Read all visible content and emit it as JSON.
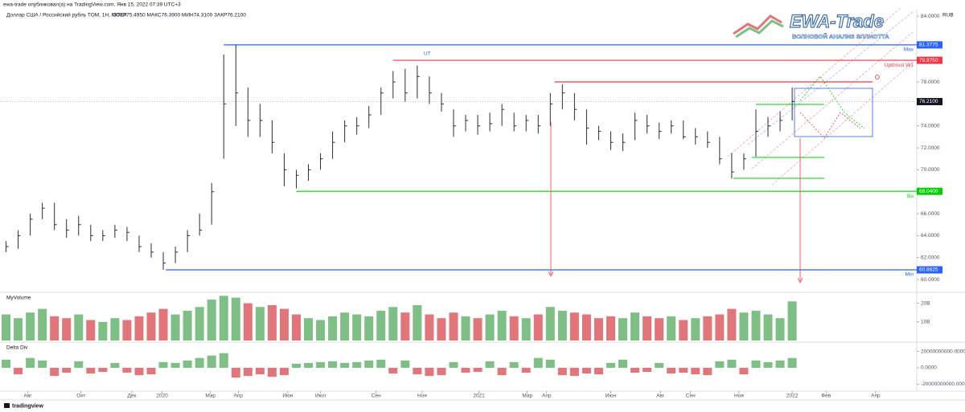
{
  "header": {
    "publisher": "ewa-trade опубликовал(а) на TradingView.com, Янв 15, 2022 07:39 UTC+3",
    "symbol": "Доллар США / Российский рубль TOM, 1Н, MOEX",
    "ohlc": "ОТКР75.4950  МАКС76.3900  МИН74.3100  ЗАКР76.2100"
  },
  "logo": {
    "title": "EWA-Trade",
    "subtitle": "ВОЛНОВОЙ АНАЛИЗ ЭЛЛИОТТА"
  },
  "footer": "tradingview",
  "chart_data": [
    {
      "type": "ohlc",
      "unit": "RUB",
      "color": "#2a2e39",
      "high": [
        63.5,
        64.5,
        66,
        67,
        67,
        65.5,
        65.8,
        65,
        64.5,
        65,
        64.8,
        64,
        63.3,
        62.5,
        63,
        64.5,
        66,
        68.8,
        80.5,
        81.3775,
        77.5,
        76,
        74.5,
        71.5,
        70,
        70.5,
        71.5,
        73.5,
        74.5,
        74.8,
        75.8,
        77.5,
        79,
        79.2,
        79.5,
        78.5,
        77,
        75.5,
        75,
        75,
        75.2,
        76,
        75.2,
        75,
        75,
        77,
        77.8,
        77,
        75.5,
        74,
        73.5,
        73.3,
        75.2,
        75,
        74.3,
        74.5,
        74.5,
        73.8,
        73.5,
        73,
        71.5,
        71.5,
        75.5,
        74.8,
        75.3,
        77.5
      ],
      "low": [
        62.5,
        62.8,
        64,
        65.5,
        64.5,
        63.8,
        64,
        63.5,
        63.5,
        63.8,
        63.5,
        62.5,
        62,
        60.8825,
        61.5,
        62.5,
        64,
        65,
        71,
        74,
        73,
        73,
        71.5,
        68.5,
        68.3,
        69,
        70,
        71,
        72.5,
        73.2,
        73.8,
        75,
        76.5,
        76.2,
        76.5,
        76,
        75.3,
        73,
        73.5,
        73.2,
        73.5,
        74,
        73.5,
        73.5,
        73.3,
        74,
        75.5,
        74.5,
        72.3,
        72.7,
        71.8,
        71.7,
        72.7,
        73.3,
        72.8,
        73.3,
        72.8,
        72.3,
        72,
        70.5,
        69.2,
        70,
        71.2,
        73,
        73.5,
        74.5
      ],
      "close": [
        63,
        64,
        65.5,
        66.5,
        65,
        64.5,
        65,
        64,
        64,
        64.5,
        64.3,
        63,
        62.5,
        61.5,
        62.5,
        64,
        64.5,
        68,
        76,
        77,
        74.5,
        74.5,
        72.5,
        70,
        69.5,
        70,
        71,
        72.5,
        74,
        74,
        75,
        77,
        78,
        77,
        78.5,
        77,
        76,
        74,
        74.5,
        74,
        74.2,
        75.5,
        74,
        74.5,
        74,
        76,
        77,
        75.5,
        73.8,
        73.5,
        72.5,
        72.5,
        74.5,
        74,
        73.5,
        74,
        73,
        73,
        72.5,
        71,
        69.8,
        71,
        73.5,
        74,
        74.5,
        76.21
      ],
      "xlim": [
        -0.5,
        75.3
      ],
      "xticks": [
        {
          "value": 1.8,
          "label": "Авг"
        },
        {
          "value": 6.2,
          "label": "Окт"
        },
        {
          "value": 10.4,
          "label": "Дек"
        },
        {
          "value": 12.9,
          "label": "2020"
        },
        {
          "value": 16.9,
          "label": "Мар"
        },
        {
          "value": 19.2,
          "label": "Апр"
        },
        {
          "value": 23.3,
          "label": "Июн"
        },
        {
          "value": 26,
          "label": "Июл"
        },
        {
          "value": 30.6,
          "label": "Сен"
        },
        {
          "value": 34.4,
          "label": "Ноя"
        },
        {
          "value": 39.1,
          "label": "2021"
        },
        {
          "value": 43.1,
          "label": "Мар"
        },
        {
          "value": 44.7,
          "label": "Апр"
        },
        {
          "value": 50,
          "label": "Июн"
        },
        {
          "value": 54.1,
          "label": "Авг"
        },
        {
          "value": 56.6,
          "label": "Сен"
        },
        {
          "value": 60.6,
          "label": "Ноя"
        },
        {
          "value": 65,
          "label": "2022"
        },
        {
          "value": 67.8,
          "label": "Фев"
        },
        {
          "value": 71.9,
          "label": "Апр"
        }
      ],
      "ylim": [
        58.98,
        84.59
      ],
      "yticks": [
        {
          "value": 84,
          "label": "84.0000"
        },
        {
          "value": 78,
          "label": "78.0000"
        },
        {
          "value": 74,
          "label": "74.0000"
        },
        {
          "value": 72,
          "label": "72.0000"
        },
        {
          "value": 70,
          "label": "70.0000"
        },
        {
          "value": 66,
          "label": "66.0000"
        },
        {
          "value": 64,
          "label": "64.0000"
        },
        {
          "value": 62,
          "label": "62.0000"
        },
        {
          "value": 60,
          "label": "60.0000"
        }
      ],
      "levels": [
        {
          "name": "Max",
          "value": 81.3775,
          "label": "81.3775",
          "color": "#2962ff",
          "from": 18
        },
        {
          "name": "Upthrust W1",
          "value": 79.975,
          "label": "79.9750",
          "color": "#f23645",
          "from": 32
        },
        {
          "name": "Bu",
          "value": 68.04,
          "label": "68.0400",
          "color": "#00d000",
          "from": 24
        },
        {
          "name": "Min",
          "value": 60.8825,
          "label": "60.8825",
          "color": "#2962ff",
          "from": 13.2
        }
      ],
      "last": {
        "value": 76.21,
        "label": "76.2100"
      },
      "annotations": [
        "UT"
      ]
    },
    {
      "type": "bar",
      "title": "MyVolume",
      "up_color": "#7dbf84",
      "down_color": "#e2757a",
      "values": [
        14,
        12,
        15,
        17,
        13,
        12,
        14,
        11,
        10,
        12,
        11,
        13,
        15,
        17,
        14,
        16,
        18,
        22,
        24,
        23,
        20,
        18,
        19,
        17,
        14,
        12,
        11,
        13,
        15,
        14,
        13,
        16,
        18,
        15,
        19,
        14,
        12,
        15,
        13,
        12,
        14,
        16,
        13,
        12,
        14,
        18,
        16,
        15,
        14,
        12,
        13,
        12,
        15,
        13,
        12,
        13,
        11,
        12,
        13,
        14,
        17,
        15,
        16,
        14,
        12,
        21
      ],
      "ylim": [
        0,
        25
      ],
      "yticks": [
        {
          "value": 20,
          "label": "20B"
        },
        {
          "value": 10,
          "label": "10B"
        }
      ]
    },
    {
      "type": "bar",
      "title": "Delta Div",
      "up_color": "#7dbf84",
      "down_color": "#e2757a",
      "values": [
        10000000000.0,
        -8000000000.0,
        12000000000.0,
        9000000000.0,
        -10000000000.0,
        -6000000000.0,
        8000000000.0,
        -7000000000.0,
        -5000000000.0,
        6000000000.0,
        -6000000000.0,
        -9000000000.0,
        -8000000000.0,
        7000000000.0,
        6000000000.0,
        9000000000.0,
        12000000000.0,
        15000000000.0,
        18000000000.0,
        -12000000000.0,
        -10000000000.0,
        -8000000000.0,
        -11000000000.0,
        -9000000000.0,
        5000000000.0,
        6000000000.0,
        7000000000.0,
        8000000000.0,
        6000000000.0,
        7000000000.0,
        9000000000.0,
        10000000000.0,
        -7000000000.0,
        9000000000.0,
        -8000000000.0,
        -10000000000.0,
        -9000000000.0,
        7000000000.0,
        -6000000000.0,
        -5000000000.0,
        8000000000.0,
        -9000000000.0,
        7000000000.0,
        -6000000000.0,
        12000000000.0,
        10000000000.0,
        -9000000000.0,
        -10000000000.0,
        -7000000000.0,
        -8000000000.0,
        6000000000.0,
        10000000000.0,
        -6000000000.0,
        -5000000000.0,
        6000000000.0,
        -7000000000.0,
        -6000000000.0,
        -8000000000.0,
        -9000000000.0,
        8000000000.0,
        10000000000.0,
        -8000000000.0,
        9000000000.0,
        7000000000.0,
        9000000000.0,
        12000000000.0
      ],
      "ylim": [
        -27600000000.0,
        29500000000.0
      ],
      "yticks": [
        {
          "value": 20000000000.0,
          "label": "20000000000.0000"
        },
        {
          "value": 0,
          "label": "0.0000"
        },
        {
          "value": -20000000000.0,
          "label": "-20000000000.0000"
        }
      ]
    }
  ]
}
